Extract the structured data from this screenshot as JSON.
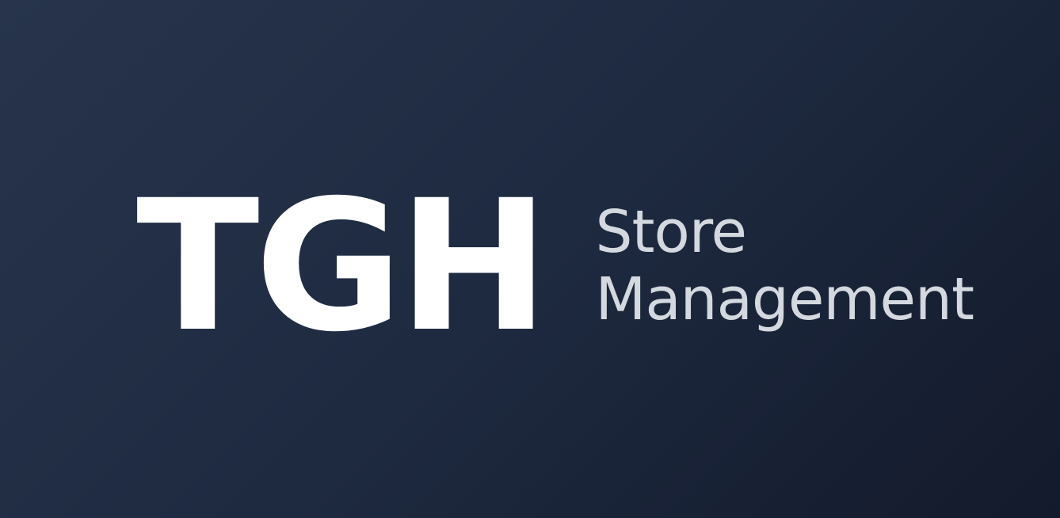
{
  "brand": {
    "monogram": "TGH",
    "subtitle_line1": "Store",
    "subtitle_line2": "Management"
  },
  "colors": {
    "background_start": "#27344c",
    "background_end": "#131a2b",
    "monogram": "#ffffff",
    "subtitle": "#d4d8df"
  }
}
